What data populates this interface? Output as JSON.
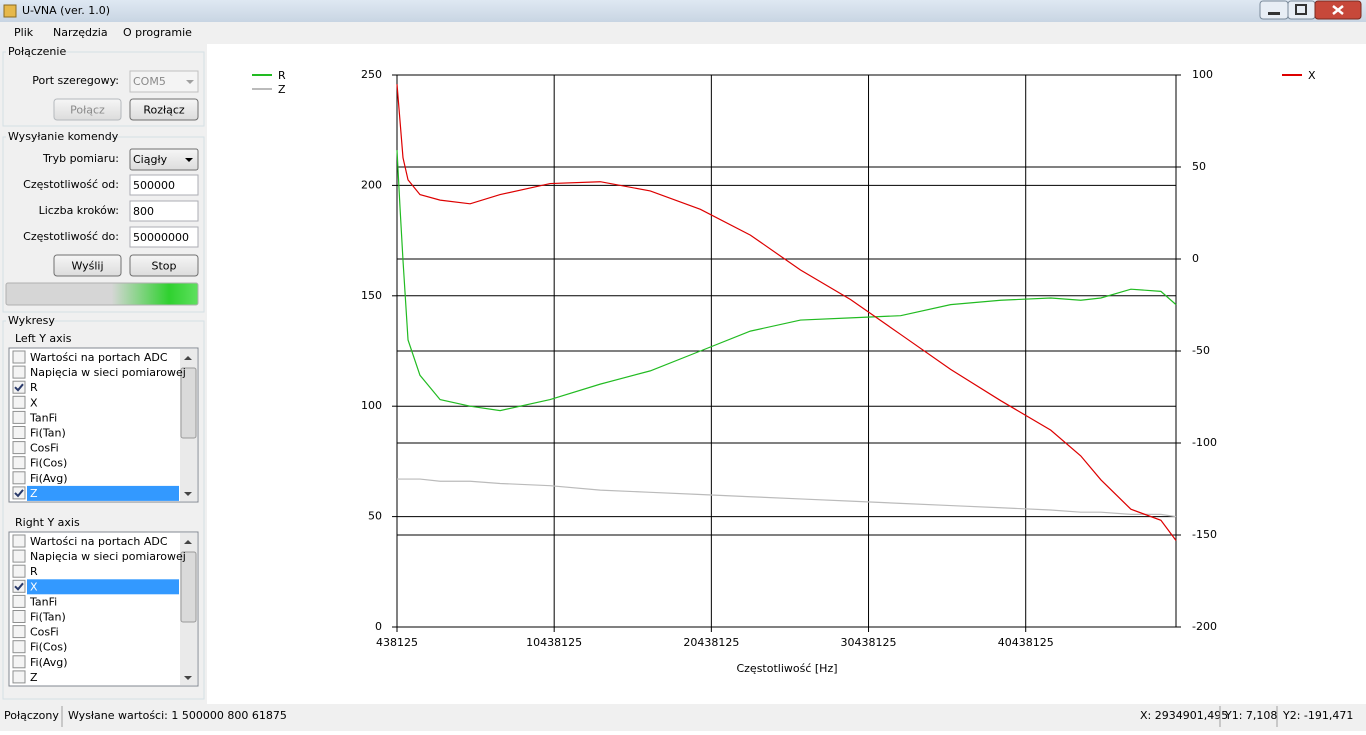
{
  "window": {
    "title": "U-VNA (ver. 1.0)"
  },
  "menu": [
    "Plik",
    "Narzędzia",
    "O programie"
  ],
  "connection": {
    "title": "Połączenie",
    "port_label": "Port szeregowy:",
    "port_value": "COM5",
    "connect": {
      "label": "Połącz",
      "enabled": false
    },
    "disconnect": {
      "label": "Rozłącz",
      "enabled": true
    }
  },
  "command": {
    "title": "Wysyłanie komendy",
    "fields": [
      {
        "label": "Tryb pomiaru:",
        "value": "Ciągły",
        "dropdown": true
      },
      {
        "label": "Częstotliwość od:",
        "value": "500000"
      },
      {
        "label": "Liczba kroków:",
        "value": "800"
      },
      {
        "label": "Częstotliwość do:",
        "value": "50000000"
      }
    ],
    "send": "Wyślij",
    "stop": "Stop"
  },
  "plots": {
    "title": "Wykresy",
    "left": {
      "title": "Left Y axis",
      "selected": 9,
      "items": [
        {
          "label": "Wartości na portach ADC",
          "checked": false
        },
        {
          "label": "Napięcia w sieci pomiarowej",
          "checked": false
        },
        {
          "label": "R",
          "checked": true
        },
        {
          "label": "X",
          "checked": false
        },
        {
          "label": "TanFi",
          "checked": false
        },
        {
          "label": "Fi(Tan)",
          "checked": false
        },
        {
          "label": "CosFi",
          "checked": false
        },
        {
          "label": "Fi(Cos)",
          "checked": false
        },
        {
          "label": "Fi(Avg)",
          "checked": false
        },
        {
          "label": "Z",
          "checked": true
        }
      ]
    },
    "right": {
      "title": "Right Y axis",
      "selected": 3,
      "items": [
        {
          "label": "Wartości na portach ADC",
          "checked": false
        },
        {
          "label": "Napięcia w sieci pomiarowej",
          "checked": false
        },
        {
          "label": "R",
          "checked": false
        },
        {
          "label": "X",
          "checked": true
        },
        {
          "label": "TanFi",
          "checked": false
        },
        {
          "label": "Fi(Tan)",
          "checked": false
        },
        {
          "label": "CosFi",
          "checked": false
        },
        {
          "label": "Fi(Cos)",
          "checked": false
        },
        {
          "label": "Fi(Avg)",
          "checked": false
        },
        {
          "label": "Z",
          "checked": false
        }
      ]
    }
  },
  "status": {
    "state": "Połączony",
    "sent": "Wysłane wartości: 1 500000 800 61875",
    "x": "X: 2934901,495",
    "y1": "Y1: 7,108",
    "y2": "Y2: -191,471"
  },
  "chart_data": {
    "type": "line",
    "x_label": "Częstotliwość [Hz]",
    "x": [
      438125,
      630000,
      820000,
      1140000,
      1900000,
      3180000,
      5090000,
      7000000,
      10180000,
      13370000,
      16550000,
      19740000,
      22920000,
      26110000,
      29290000,
      32480000,
      35660000,
      38850000,
      42030000,
      43940000,
      45220000,
      47130000,
      49040000,
      50000000
    ],
    "xlim": [
      438125,
      50000000
    ],
    "xticks": [
      438125,
      10438125,
      20438125,
      30438125,
      40438125
    ],
    "ylim": [
      0,
      250
    ],
    "yticks": [
      0,
      50,
      100,
      150,
      200,
      250
    ],
    "y2lim": [
      -200,
      100
    ],
    "y2ticks": [
      -200,
      -150,
      -100,
      -50,
      0,
      50,
      100
    ],
    "grid": true,
    "series": [
      {
        "name": "R",
        "color": "#22bb22",
        "values": [
          216,
          190,
          166,
          130,
          114,
          103,
          100,
          98,
          103,
          110,
          116,
          125,
          134,
          139,
          140,
          141,
          146,
          148,
          149,
          148,
          149,
          153,
          152,
          146
        ]
      },
      {
        "name": "Z",
        "color": "#bbbbbb",
        "values": [
          67,
          67,
          67,
          67,
          67,
          66,
          66,
          65,
          64,
          62,
          61,
          60,
          59,
          58,
          57,
          56,
          55,
          54,
          53,
          52,
          52,
          51,
          51,
          50
        ]
      },
      {
        "name": "X",
        "color": "#dd0000",
        "axis": "y2",
        "values": [
          95,
          75,
          55,
          43,
          35,
          32,
          30,
          35,
          41,
          42,
          37,
          27,
          13,
          -6,
          -22,
          -41,
          -60,
          -77,
          -93,
          -107,
          -120,
          -136,
          -142,
          -153
        ]
      }
    ]
  }
}
